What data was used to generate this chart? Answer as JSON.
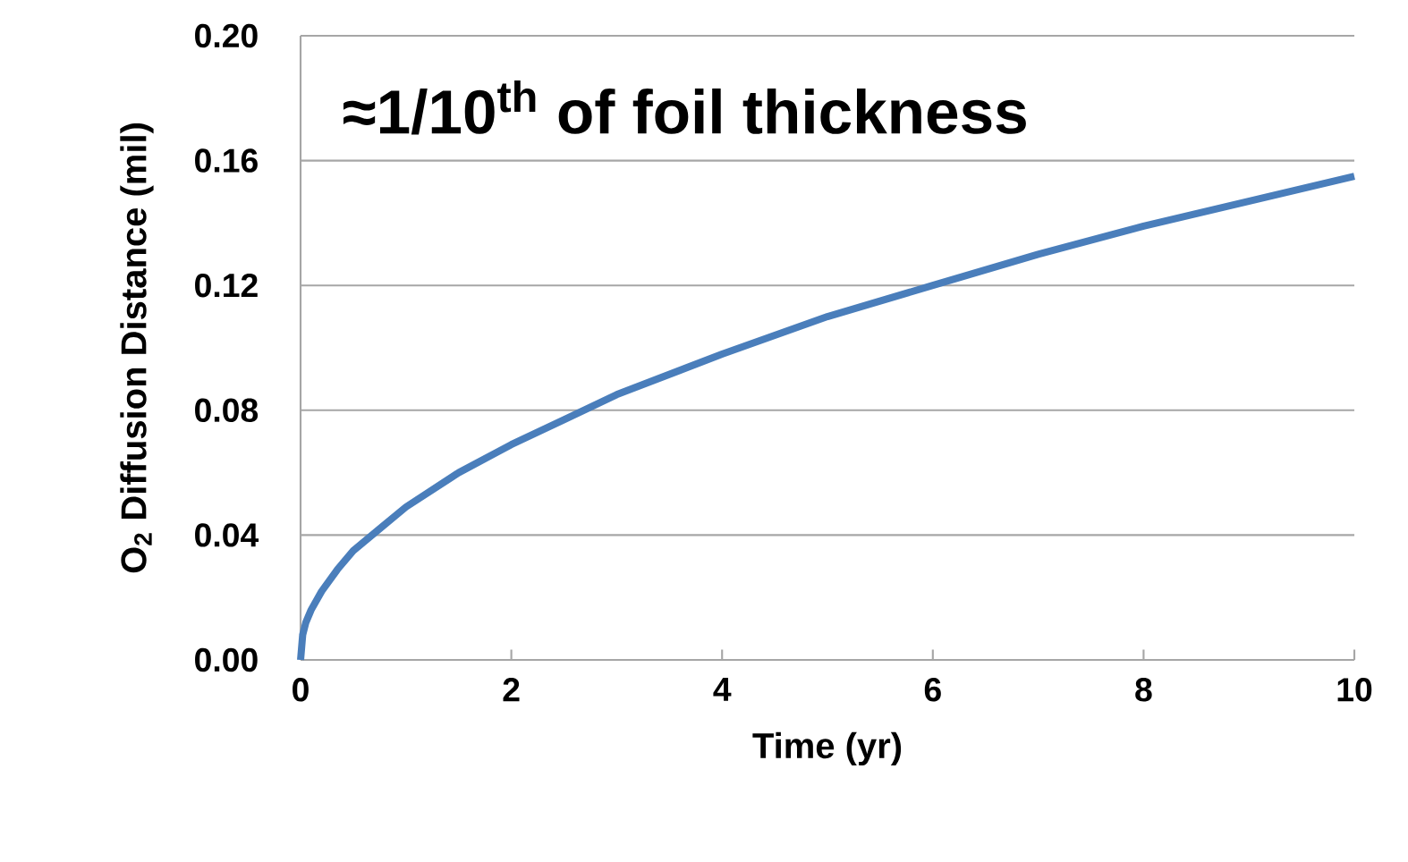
{
  "chart_data": {
    "type": "line",
    "xlabel": "Time (yr)",
    "ylabel": "O$_{2}$ Diffusion Distance (mil)",
    "annotations": [
      "≈1/10$^{th}$ of foil thickness"
    ],
    "x": [
      0,
      0.02,
      0.05,
      0.1,
      0.2,
      0.35,
      0.5,
      0.75,
      1,
      1.5,
      2,
      2.5,
      3,
      4,
      5,
      6,
      7,
      8,
      9,
      10
    ],
    "series": [
      {
        "color": "#4a7ebb",
        "values": [
          0,
          0.008,
          0.012,
          0.016,
          0.022,
          0.029,
          0.035,
          0.042,
          0.049,
          0.06,
          0.069,
          0.077,
          0.085,
          0.098,
          0.11,
          0.12,
          0.13,
          0.139,
          0.147,
          0.155
        ]
      }
    ],
    "xlim": [
      0,
      10
    ],
    "xticks": [
      0,
      2,
      4,
      6,
      8,
      10
    ],
    "ylim": [
      0,
      0.2
    ],
    "yticks": [
      {
        "value": 0,
        "label": "0.00"
      },
      {
        "value": 0.04,
        "label": "0.04"
      },
      {
        "value": 0.08,
        "label": "0.08"
      },
      {
        "value": 0.12,
        "label": "0.12"
      },
      {
        "value": 0.16,
        "label": "0.16"
      },
      {
        "value": 0.2,
        "label": "0.20"
      }
    ],
    "grid": "y",
    "marker": "none",
    "line_style": "solid"
  }
}
